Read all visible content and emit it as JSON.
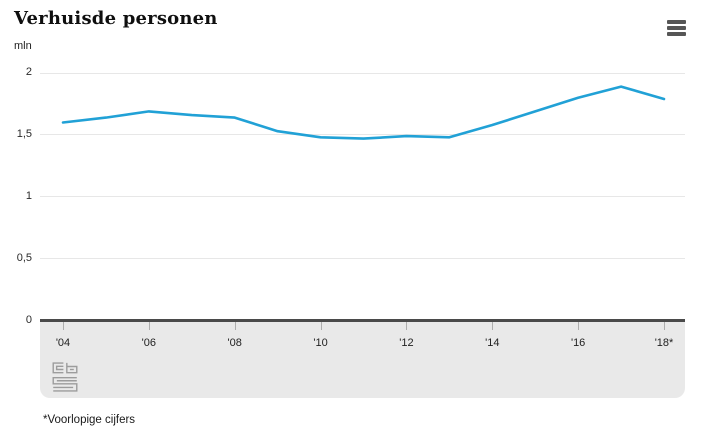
{
  "header": {
    "title": "Verhuisde personen",
    "menu_icon": "hamburger-menu-icon"
  },
  "chart_data": {
    "type": "line",
    "title": "Verhuisde personen",
    "unit": "mln",
    "series": [
      {
        "name": "Verhuisde personen",
        "color": "#21a1d6",
        "values": [
          1.6,
          1.64,
          1.69,
          1.66,
          1.64,
          1.53,
          1.48,
          1.47,
          1.49,
          1.48,
          1.58,
          1.69,
          1.8,
          1.89,
          1.79
        ]
      }
    ],
    "x": [
      2004,
      2005,
      2006,
      2007,
      2008,
      2009,
      2010,
      2011,
      2012,
      2013,
      2014,
      2015,
      2016,
      2017,
      2018
    ],
    "xticks": [
      {
        "x": 2004,
        "label": "'04"
      },
      {
        "x": 2006,
        "label": "'06"
      },
      {
        "x": 2008,
        "label": "'08"
      },
      {
        "x": 2010,
        "label": "'10"
      },
      {
        "x": 2012,
        "label": "'12"
      },
      {
        "x": 2014,
        "label": "'14"
      },
      {
        "x": 2016,
        "label": "'16"
      },
      {
        "x": 2018,
        "label": "'18*"
      }
    ],
    "yticks": [
      {
        "value": 0,
        "label": "0"
      },
      {
        "value": 0.5,
        "label": "0,5"
      },
      {
        "value": 1,
        "label": "1"
      },
      {
        "value": 1.5,
        "label": "1,5"
      },
      {
        "value": 2,
        "label": "2"
      }
    ],
    "ylim": [
      0,
      2
    ],
    "grid": true,
    "legend": "none",
    "footnote": "*Voorlopige cijfers",
    "logo": "cbs-logo-icon"
  }
}
